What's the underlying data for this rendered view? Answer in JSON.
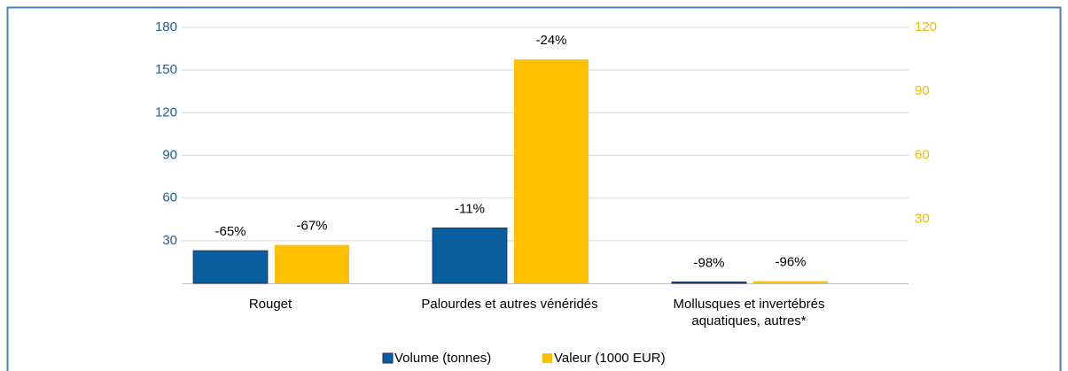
{
  "chart_data": {
    "type": "bar",
    "categories": [
      "Rouget",
      "Palourdes et autres vénéridés",
      "Mollusques et invertébrés aquatiques, autres*"
    ],
    "series": [
      {
        "name": "Volume (tonnes)",
        "color": "#0b5e9e",
        "values": [
          23,
          39,
          1
        ],
        "labels": [
          "-65%",
          "-11%",
          "-98%"
        ]
      },
      {
        "name": "Valeur (1000 EUR)",
        "color": "#ffc000",
        "axis": "y2",
        "values": [
          18,
          105,
          1
        ],
        "labels": [
          "-67%",
          "-24%",
          "-96%"
        ]
      }
    ],
    "ylim": [
      0,
      180
    ],
    "yticks": [
      30,
      60,
      90,
      120,
      150,
      180
    ],
    "y2lim": [
      0,
      120
    ],
    "y2ticks": [
      30,
      60,
      90,
      120
    ],
    "grid": true,
    "legend": "bottom"
  }
}
